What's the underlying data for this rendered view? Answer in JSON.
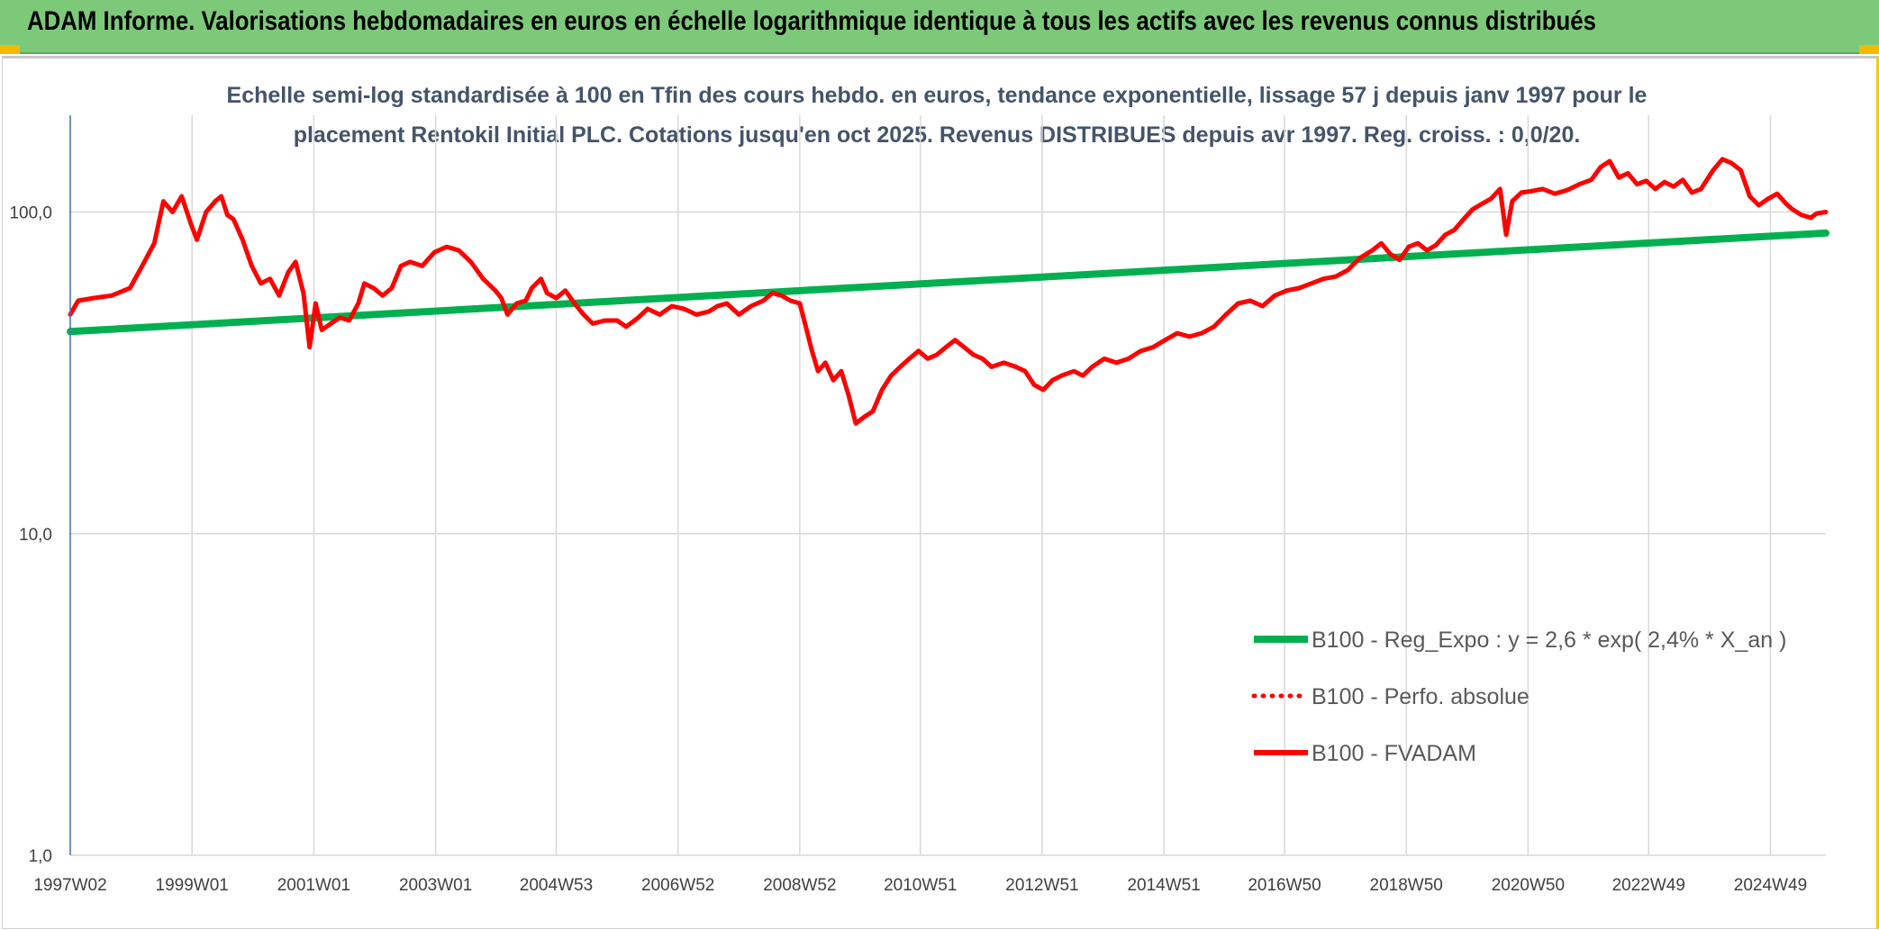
{
  "header": {
    "title": "ADAM Informe. Valorisations hebdomadaires en euros en échelle logarithmique identique à tous les actifs avec les revenus connus distribués"
  },
  "colors": {
    "banner": "#7dc97a",
    "regression": "#00b050",
    "fvadam": "#ff0000",
    "perfo": "#ff0000",
    "grid": "#d9d9d9",
    "axis": "#4472c4"
  },
  "chart_data": {
    "type": "line",
    "title_line1": "Echelle semi-log standardisée à 100 en Tfin des cours hebdo. en euros, tendance exponentielle, lissage 57 j depuis janv 1997 pour le",
    "title_line2": "placement Rentokil Initial PLC. Cotations jusqu'en oct 2025. Revenus DISTRIBUES depuis avr 1997. Reg. croiss. : 0,0/20.",
    "y_scale": "log",
    "ylim": [
      1,
      200
    ],
    "y_ticks": [
      {
        "value": 1,
        "label": "1,0"
      },
      {
        "value": 10,
        "label": "10,0"
      },
      {
        "value": 100,
        "label": "100,0"
      }
    ],
    "xlim": [
      1997.02,
      2025.85
    ],
    "x_ticks": [
      {
        "x": 1997.02,
        "label": "1997W02"
      },
      {
        "x": 1999.02,
        "label": "1999W01"
      },
      {
        "x": 2001.02,
        "label": "2001W01"
      },
      {
        "x": 2003.02,
        "label": "2003W01"
      },
      {
        "x": 2005.0,
        "label": "2004W53"
      },
      {
        "x": 2007.0,
        "label": "2006W52"
      },
      {
        "x": 2009.0,
        "label": "2008W52"
      },
      {
        "x": 2010.98,
        "label": "2010W51"
      },
      {
        "x": 2012.98,
        "label": "2012W51"
      },
      {
        "x": 2014.98,
        "label": "2014W51"
      },
      {
        "x": 2016.96,
        "label": "2016W50"
      },
      {
        "x": 2018.96,
        "label": "2018W50"
      },
      {
        "x": 2020.96,
        "label": "2020W50"
      },
      {
        "x": 2022.94,
        "label": "2022W49"
      },
      {
        "x": 2024.94,
        "label": "2024W49"
      }
    ],
    "legend_position": "bottom-right",
    "series": [
      {
        "name": "B100 - Reg_Expo : y = 2,6 * exp( 2,4% *  X_an )",
        "style": "solid-thick",
        "color": "#00b050",
        "points": [
          [
            1997.02,
            42.5
          ],
          [
            2025.85,
            86.0
          ]
        ]
      },
      {
        "name": "B100 - Perfo. absolue",
        "style": "dotted",
        "color": "#ff0000",
        "points": []
      },
      {
        "name": "B100 - FVADAM",
        "style": "solid",
        "color": "#ff0000",
        "points": [
          [
            1997.02,
            48
          ],
          [
            1997.15,
            53
          ],
          [
            1997.4,
            54
          ],
          [
            1997.7,
            55
          ],
          [
            1998.0,
            58
          ],
          [
            1998.2,
            68
          ],
          [
            1998.4,
            80
          ],
          [
            1998.55,
            108
          ],
          [
            1998.7,
            100
          ],
          [
            1998.85,
            112
          ],
          [
            1999.0,
            92
          ],
          [
            1999.1,
            82
          ],
          [
            1999.25,
            100
          ],
          [
            1999.4,
            108
          ],
          [
            1999.5,
            112
          ],
          [
            1999.6,
            98
          ],
          [
            1999.7,
            95
          ],
          [
            1999.85,
            82
          ],
          [
            2000.0,
            68
          ],
          [
            2000.15,
            60
          ],
          [
            2000.3,
            62
          ],
          [
            2000.45,
            55
          ],
          [
            2000.6,
            65
          ],
          [
            2000.72,
            70
          ],
          [
            2000.85,
            56
          ],
          [
            2000.95,
            38
          ],
          [
            2001.05,
            52
          ],
          [
            2001.15,
            43
          ],
          [
            2001.3,
            45
          ],
          [
            2001.45,
            47
          ],
          [
            2001.6,
            46
          ],
          [
            2001.75,
            52
          ],
          [
            2001.85,
            60
          ],
          [
            2002.0,
            58
          ],
          [
            2002.15,
            55
          ],
          [
            2002.3,
            58
          ],
          [
            2002.45,
            68
          ],
          [
            2002.6,
            70
          ],
          [
            2002.8,
            68
          ],
          [
            2003.0,
            75
          ],
          [
            2003.2,
            78
          ],
          [
            2003.4,
            76
          ],
          [
            2003.6,
            70
          ],
          [
            2003.8,
            62
          ],
          [
            2004.0,
            57
          ],
          [
            2004.1,
            54
          ],
          [
            2004.2,
            48
          ],
          [
            2004.35,
            52
          ],
          [
            2004.5,
            53
          ],
          [
            2004.6,
            58
          ],
          [
            2004.75,
            62
          ],
          [
            2004.85,
            56
          ],
          [
            2005.0,
            54
          ],
          [
            2005.15,
            57
          ],
          [
            2005.3,
            52
          ],
          [
            2005.45,
            48
          ],
          [
            2005.6,
            45
          ],
          [
            2005.8,
            46
          ],
          [
            2006.0,
            46
          ],
          [
            2006.15,
            44
          ],
          [
            2006.35,
            47
          ],
          [
            2006.5,
            50
          ],
          [
            2006.7,
            48
          ],
          [
            2006.9,
            51
          ],
          [
            2007.1,
            50
          ],
          [
            2007.3,
            48
          ],
          [
            2007.5,
            49
          ],
          [
            2007.65,
            51
          ],
          [
            2007.8,
            52
          ],
          [
            2008.0,
            48
          ],
          [
            2008.2,
            51
          ],
          [
            2008.4,
            53
          ],
          [
            2008.55,
            56
          ],
          [
            2008.7,
            55
          ],
          [
            2008.85,
            53
          ],
          [
            2009.0,
            52
          ],
          [
            2009.1,
            44
          ],
          [
            2009.2,
            37
          ],
          [
            2009.3,
            32
          ],
          [
            2009.42,
            34
          ],
          [
            2009.55,
            30
          ],
          [
            2009.68,
            32
          ],
          [
            2009.8,
            27
          ],
          [
            2009.92,
            22
          ],
          [
            2010.05,
            23
          ],
          [
            2010.2,
            24
          ],
          [
            2010.35,
            28
          ],
          [
            2010.5,
            31
          ],
          [
            2010.65,
            33
          ],
          [
            2010.8,
            35
          ],
          [
            2010.95,
            37
          ],
          [
            2011.1,
            35
          ],
          [
            2011.25,
            36
          ],
          [
            2011.4,
            38
          ],
          [
            2011.55,
            40
          ],
          [
            2011.7,
            38
          ],
          [
            2011.85,
            36
          ],
          [
            2012.0,
            35
          ],
          [
            2012.15,
            33
          ],
          [
            2012.35,
            34
          ],
          [
            2012.55,
            33
          ],
          [
            2012.7,
            32
          ],
          [
            2012.85,
            29
          ],
          [
            2013.0,
            28
          ],
          [
            2013.15,
            30
          ],
          [
            2013.3,
            31
          ],
          [
            2013.5,
            32
          ],
          [
            2013.65,
            31
          ],
          [
            2013.8,
            33
          ],
          [
            2014.0,
            35
          ],
          [
            2014.2,
            34
          ],
          [
            2014.4,
            35
          ],
          [
            2014.6,
            37
          ],
          [
            2014.8,
            38
          ],
          [
            2015.0,
            40
          ],
          [
            2015.2,
            42
          ],
          [
            2015.4,
            41
          ],
          [
            2015.6,
            42
          ],
          [
            2015.8,
            44
          ],
          [
            2016.0,
            48
          ],
          [
            2016.2,
            52
          ],
          [
            2016.4,
            53
          ],
          [
            2016.6,
            51
          ],
          [
            2016.8,
            55
          ],
          [
            2017.0,
            57
          ],
          [
            2017.2,
            58
          ],
          [
            2017.4,
            60
          ],
          [
            2017.6,
            62
          ],
          [
            2017.8,
            63
          ],
          [
            2018.0,
            66
          ],
          [
            2018.2,
            72
          ],
          [
            2018.4,
            76
          ],
          [
            2018.55,
            80
          ],
          [
            2018.7,
            74
          ],
          [
            2018.85,
            71
          ],
          [
            2019.0,
            78
          ],
          [
            2019.15,
            80
          ],
          [
            2019.3,
            76
          ],
          [
            2019.45,
            79
          ],
          [
            2019.6,
            85
          ],
          [
            2019.75,
            88
          ],
          [
            2019.9,
            95
          ],
          [
            2020.05,
            102
          ],
          [
            2020.2,
            106
          ],
          [
            2020.35,
            110
          ],
          [
            2020.5,
            118
          ],
          [
            2020.6,
            85
          ],
          [
            2020.7,
            108
          ],
          [
            2020.85,
            115
          ],
          [
            2021.0,
            116
          ],
          [
            2021.2,
            118
          ],
          [
            2021.4,
            114
          ],
          [
            2021.6,
            117
          ],
          [
            2021.8,
            122
          ],
          [
            2022.0,
            126
          ],
          [
            2022.15,
            138
          ],
          [
            2022.3,
            144
          ],
          [
            2022.45,
            128
          ],
          [
            2022.6,
            132
          ],
          [
            2022.75,
            122
          ],
          [
            2022.9,
            125
          ],
          [
            2023.05,
            118
          ],
          [
            2023.2,
            124
          ],
          [
            2023.35,
            120
          ],
          [
            2023.5,
            126
          ],
          [
            2023.65,
            115
          ],
          [
            2023.8,
            118
          ],
          [
            2024.0,
            135
          ],
          [
            2024.15,
            146
          ],
          [
            2024.3,
            142
          ],
          [
            2024.45,
            135
          ],
          [
            2024.6,
            112
          ],
          [
            2024.75,
            105
          ],
          [
            2024.9,
            110
          ],
          [
            2025.05,
            114
          ],
          [
            2025.2,
            106
          ],
          [
            2025.3,
            102
          ],
          [
            2025.45,
            98
          ],
          [
            2025.6,
            96
          ],
          [
            2025.7,
            99
          ],
          [
            2025.85,
            100
          ]
        ]
      }
    ]
  }
}
